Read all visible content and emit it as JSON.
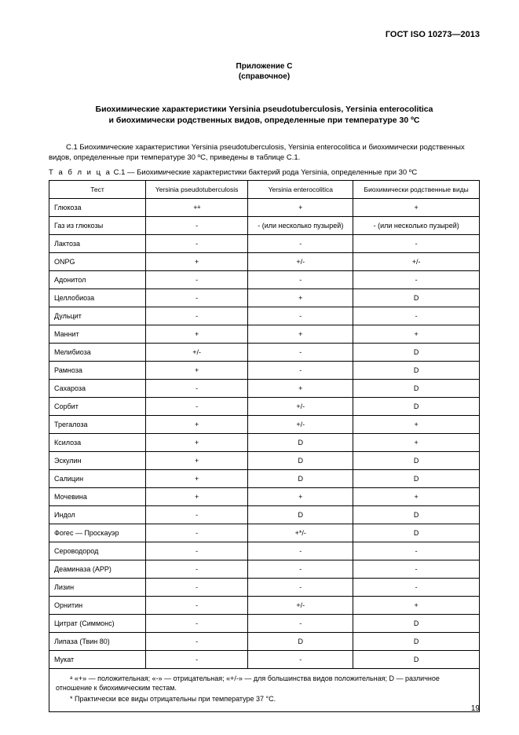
{
  "doc_header": "ГОСТ ISO 10273—2013",
  "annex_label": "Приложение С",
  "annex_type": "(справочное)",
  "main_title_l1": "Биохимические характеристики Yersinia pseudotuberculosis, Yersinia enterocolitica",
  "main_title_l2": "и биохимически родственных видов, определенные при температуре 30 ºС",
  "intro_text": "С.1 Биохимические характеристики Yersinia pseudotuberculosis, Yersinia enterocolitica и биохимически родственных видов, определенные при температуре 30 ºС, приведены в таблице С.1.",
  "table_caption_prefix": "Т а б л и ц а",
  "table_caption_rest": " С.1 — Биохимические характеристики бактерий рода Yersinia, определенные при 30 ºС",
  "columns": {
    "c0": "Тест",
    "c1": "Yersinia pseudotuberculosis",
    "c2": "Yersinia enterocolitica",
    "c3": "Биохимически родственные виды"
  },
  "rows": [
    {
      "t": "Глюкоза",
      "a": "+ᵃ",
      "b": "+",
      "c": "+"
    },
    {
      "t": "Газ из глюкозы",
      "a": "-",
      "b": "- (или несколько пузырей)",
      "c": "- (или несколько пузырей)"
    },
    {
      "t": "Лактоза",
      "a": "-",
      "b": "-",
      "c": "-"
    },
    {
      "t": "ONPG",
      "a": "+",
      "b": "+/-",
      "c": "+/-"
    },
    {
      "t": "Адонитол",
      "a": "-",
      "b": "-",
      "c": "-"
    },
    {
      "t": "Целлобиоза",
      "a": "-",
      "b": "+",
      "c": "D"
    },
    {
      "t": "Дульцит",
      "a": "-",
      "b": "-",
      "c": "-"
    },
    {
      "t": "Маннит",
      "a": "+",
      "b": "+",
      "c": "+"
    },
    {
      "t": "Мелибиоза",
      "a": "+/-",
      "b": "-",
      "c": "D"
    },
    {
      "t": "Рамноза",
      "a": "+",
      "b": "-",
      "c": "D"
    },
    {
      "t": "Сахароза",
      "a": "-",
      "b": "+",
      "c": "D"
    },
    {
      "t": "Сорбит",
      "a": "-",
      "b": "+/-",
      "c": "D"
    },
    {
      "t": "Трегалоза",
      "a": "+",
      "b": "+/-",
      "c": "+"
    },
    {
      "t": "Ксилоза",
      "a": "+",
      "b": "D",
      "c": "+"
    },
    {
      "t": "Эскулин",
      "a": "+",
      "b": "D",
      "c": "D"
    },
    {
      "t": "Салицин",
      "a": "+",
      "b": "D",
      "c": "D"
    },
    {
      "t": "Мочевина",
      "a": "+",
      "b": "+",
      "c": "+"
    },
    {
      "t": "Индол",
      "a": "-",
      "b": "D",
      "c": "D"
    },
    {
      "t": "Фогес — Проскауэр",
      "a": "-",
      "b": "+*/-",
      "c": "D"
    },
    {
      "t": "Сероводород",
      "a": "-",
      "b": "-",
      "c": "-"
    },
    {
      "t": "Деаминаза (АРР)",
      "a": "-",
      "b": "-",
      "c": "-"
    },
    {
      "t": "Лизин",
      "a": "-",
      "b": "-",
      "c": "-"
    },
    {
      "t": "Орнитин",
      "a": "-",
      "b": "+/-",
      "c": "+"
    },
    {
      "t": "Цитрат (Симмонс)",
      "a": "-",
      "b": "-",
      "c": "D"
    },
    {
      "t": "Липаза (Твин 80)",
      "a": "-",
      "b": "D",
      "c": "D"
    },
    {
      "t": "Мукат",
      "a": "-",
      "b": "-",
      "c": "D"
    }
  ],
  "footnote_a": "ᵃ «+» — положительная; «-» — отрицательная; «+/-» — для большинства видов положительная; D — различное отношение к биохимическим тестам.",
  "footnote_star": "* Практически все виды отрицательны при температуре 37 °С.",
  "page_number": "19"
}
